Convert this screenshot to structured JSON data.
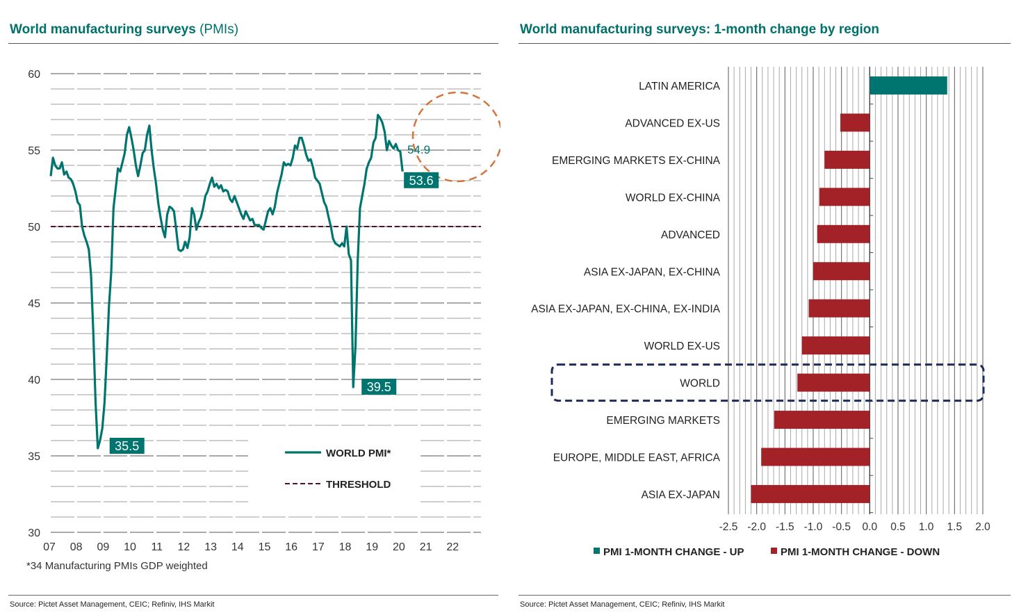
{
  "left_panel": {
    "title": "World manufacturing surveys",
    "title_suffix": "(PMIs)",
    "footnote": "*34 Manufacturing PMIs GDP weighted",
    "source": "Source: Pictet Asset Management, CEIC; Refiniv, IHS Markit"
  },
  "right_panel": {
    "title": "World manufacturing surveys: 1-month change by region",
    "source": "Source: Pictet Asset Management, CEIC; Refiniv, IHS Markit"
  },
  "colors": {
    "teal": "#00746e",
    "red": "#a32227",
    "threshold": "#5a1020",
    "annotation_circle": "#d4733a",
    "highlight_box": "#1a2b5c",
    "title": "#00706b"
  },
  "chart_data": [
    {
      "type": "line",
      "title": "World manufacturing surveys (PMIs)",
      "xlabel": "",
      "ylabel": "",
      "x_ticks": [
        "07",
        "08",
        "09",
        "10",
        "11",
        "12",
        "13",
        "14",
        "15",
        "16",
        "17",
        "18",
        "19",
        "20",
        "21",
        "22"
      ],
      "xlim": [
        "2007-01",
        "2023-01"
      ],
      "ylim": [
        30,
        60
      ],
      "y_ticks": [
        30,
        35,
        40,
        45,
        50,
        55,
        60
      ],
      "grid": true,
      "legend_placement": "bottom-right",
      "series": [
        {
          "name": "WORLD PMI*",
          "style": "solid",
          "points": [
            [
              "2007-01",
              53.3
            ],
            [
              "2007-02",
              54.5
            ],
            [
              "2007-03",
              54.0
            ],
            [
              "2007-04",
              53.8
            ],
            [
              "2007-05",
              53.8
            ],
            [
              "2007-06",
              54.2
            ],
            [
              "2007-07",
              53.4
            ],
            [
              "2007-08",
              53.6
            ],
            [
              "2007-09",
              53.2
            ],
            [
              "2007-10",
              53.1
            ],
            [
              "2007-11",
              52.8
            ],
            [
              "2007-12",
              52.3
            ],
            [
              "2008-01",
              51.6
            ],
            [
              "2008-02",
              51.4
            ],
            [
              "2008-03",
              50.0
            ],
            [
              "2008-04",
              49.4
            ],
            [
              "2008-05",
              49.0
            ],
            [
              "2008-06",
              48.5
            ],
            [
              "2008-07",
              46.8
            ],
            [
              "2008-08",
              43.0
            ],
            [
              "2008-09",
              38.5
            ],
            [
              "2008-10",
              35.5
            ],
            [
              "2008-11",
              36.0
            ],
            [
              "2008-12",
              36.8
            ],
            [
              "2009-01",
              38.5
            ],
            [
              "2009-02",
              41.5
            ],
            [
              "2009-03",
              44.8
            ],
            [
              "2009-04",
              47.0
            ],
            [
              "2009-05",
              51.2
            ],
            [
              "2009-06",
              52.5
            ],
            [
              "2009-07",
              53.8
            ],
            [
              "2009-08",
              53.6
            ],
            [
              "2009-09",
              54.2
            ],
            [
              "2009-10",
              54.8
            ],
            [
              "2009-11",
              56.0
            ],
            [
              "2009-12",
              56.5
            ],
            [
              "2010-01",
              55.8
            ],
            [
              "2010-02",
              55.0
            ],
            [
              "2010-03",
              54.0
            ],
            [
              "2010-04",
              53.3
            ],
            [
              "2010-05",
              54.0
            ],
            [
              "2010-06",
              54.8
            ],
            [
              "2010-07",
              55.0
            ],
            [
              "2010-08",
              56.0
            ],
            [
              "2010-09",
              56.6
            ],
            [
              "2010-10",
              55.0
            ],
            [
              "2010-11",
              53.8
            ],
            [
              "2010-12",
              52.8
            ],
            [
              "2011-01",
              51.5
            ],
            [
              "2011-02",
              50.6
            ],
            [
              "2011-03",
              49.8
            ],
            [
              "2011-04",
              49.3
            ],
            [
              "2011-05",
              50.8
            ],
            [
              "2011-06",
              51.3
            ],
            [
              "2011-07",
              51.2
            ],
            [
              "2011-08",
              51.0
            ],
            [
              "2011-09",
              49.8
            ],
            [
              "2011-10",
              48.5
            ],
            [
              "2011-11",
              48.4
            ],
            [
              "2011-12",
              48.5
            ],
            [
              "2012-01",
              49.0
            ],
            [
              "2012-02",
              48.6
            ],
            [
              "2012-03",
              49.3
            ],
            [
              "2012-04",
              51.2
            ],
            [
              "2012-05",
              50.8
            ],
            [
              "2012-06",
              49.8
            ],
            [
              "2012-07",
              50.3
            ],
            [
              "2012-08",
              50.6
            ],
            [
              "2012-09",
              51.2
            ],
            [
              "2012-10",
              52.0
            ],
            [
              "2012-11",
              52.3
            ],
            [
              "2012-12",
              52.8
            ],
            [
              "2013-01",
              53.2
            ],
            [
              "2013-02",
              52.6
            ],
            [
              "2013-03",
              52.8
            ],
            [
              "2013-04",
              52.5
            ],
            [
              "2013-05",
              52.7
            ],
            [
              "2013-06",
              52.3
            ],
            [
              "2013-07",
              52.4
            ],
            [
              "2013-08",
              52.3
            ],
            [
              "2013-09",
              51.8
            ],
            [
              "2013-10",
              51.6
            ],
            [
              "2013-11",
              52.0
            ],
            [
              "2013-12",
              51.6
            ],
            [
              "2014-01",
              51.2
            ],
            [
              "2014-02",
              50.8
            ],
            [
              "2014-03",
              50.5
            ],
            [
              "2014-04",
              51.0
            ],
            [
              "2014-05",
              50.7
            ],
            [
              "2014-06",
              50.4
            ],
            [
              "2014-07",
              50.5
            ],
            [
              "2014-08",
              50.1
            ],
            [
              "2014-09",
              50.1
            ],
            [
              "2014-10",
              50.1
            ],
            [
              "2014-11",
              49.9
            ],
            [
              "2014-12",
              49.8
            ],
            [
              "2015-01",
              50.4
            ],
            [
              "2015-02",
              51.0
            ],
            [
              "2015-03",
              51.2
            ],
            [
              "2015-04",
              50.8
            ],
            [
              "2015-05",
              51.3
            ],
            [
              "2015-06",
              52.2
            ],
            [
              "2015-07",
              52.8
            ],
            [
              "2015-08",
              53.4
            ],
            [
              "2015-09",
              54.2
            ],
            [
              "2015-10",
              54.0
            ],
            [
              "2015-11",
              54.1
            ],
            [
              "2015-12",
              54.0
            ],
            [
              "2016-01",
              54.5
            ],
            [
              "2016-02",
              55.3
            ],
            [
              "2016-03",
              55.1
            ],
            [
              "2016-04",
              55.8
            ],
            [
              "2016-05",
              55.8
            ],
            [
              "2016-06",
              55.3
            ],
            [
              "2016-07",
              54.7
            ],
            [
              "2016-08",
              54.3
            ],
            [
              "2016-09",
              54.4
            ],
            [
              "2016-10",
              53.9
            ],
            [
              "2016-11",
              53.2
            ],
            [
              "2016-12",
              53.0
            ],
            [
              "2017-01",
              52.8
            ],
            [
              "2017-02",
              52.2
            ],
            [
              "2017-03",
              51.6
            ],
            [
              "2017-04",
              51.3
            ],
            [
              "2017-05",
              50.6
            ],
            [
              "2017-06",
              50.0
            ],
            [
              "2017-07",
              49.2
            ],
            [
              "2017-08",
              48.9
            ],
            [
              "2017-09",
              48.8
            ],
            [
              "2017-10",
              48.7
            ],
            [
              "2017-11",
              48.9
            ],
            [
              "2017-12",
              48.7
            ],
            [
              "2018-01",
              50.0
            ],
            [
              "2018-02",
              48.2
            ],
            [
              "2018-03",
              47.8
            ],
            [
              "2018-04",
              39.5
            ],
            [
              "2018-05",
              42.2
            ],
            [
              "2018-06",
              47.8
            ],
            [
              "2018-07",
              51.2
            ],
            [
              "2018-08",
              52.0
            ],
            [
              "2018-09",
              52.8
            ],
            [
              "2018-10",
              53.8
            ],
            [
              "2018-11",
              54.2
            ],
            [
              "2018-12",
              54.5
            ],
            [
              "2019-01",
              55.5
            ],
            [
              "2019-02",
              55.8
            ],
            [
              "2019-03",
              57.3
            ],
            [
              "2019-04",
              57.1
            ],
            [
              "2019-05",
              56.8
            ],
            [
              "2019-06",
              56.2
            ],
            [
              "2019-07",
              55.0
            ],
            [
              "2019-08",
              55.6
            ],
            [
              "2019-09",
              55.3
            ],
            [
              "2019-10",
              55.1
            ],
            [
              "2019-11",
              55.4
            ],
            [
              "2019-12",
              55.0
            ],
            [
              "2020-01",
              54.9
            ],
            [
              "2020-02",
              53.6
            ]
          ],
          "value_labels": [
            {
              "date": "2008-10",
              "label": "35.5"
            },
            {
              "date": "2018-04",
              "label": "39.5"
            },
            {
              "date": "2020-01",
              "label": "54.9"
            },
            {
              "date": "2020-02",
              "label": "53.6"
            }
          ]
        },
        {
          "name": "THRESHOLD",
          "style": "dashed",
          "value": 50
        }
      ]
    },
    {
      "type": "bar",
      "orientation": "horizontal",
      "title": "World manufacturing surveys: 1-month change by region",
      "xlabel": "",
      "ylabel": "",
      "xlim": [
        -2.5,
        2.0
      ],
      "x_ticks": [
        "-2.5",
        "-2.0",
        "-1.5",
        "-1.0",
        "-0.5",
        "0.0",
        "0.5",
        "1.0",
        "1.5",
        "2.0"
      ],
      "grid": true,
      "legend_placement": "bottom",
      "legend": [
        "PMI 1-MONTH CHANGE - UP",
        "PMI 1-MONTH CHANGE - DOWN"
      ],
      "categories": [
        "LATIN AMERICA",
        "ADVANCED EX-US",
        "EMERGING MARKETS EX-CHINA",
        "WORLD EX-CHINA",
        "ADVANCED",
        "ASIA EX-JAPAN, EX-CHINA",
        "ASIA EX-JAPAN, EX-CHINA, EX-INDIA",
        "WORLD EX-US",
        "WORLD",
        "EMERGING MARKETS",
        "EUROPE, MIDDLE EAST, AFRICA",
        "ASIA EX-JAPAN"
      ],
      "values": [
        1.37,
        -0.52,
        -0.8,
        -0.89,
        -0.93,
        -1.0,
        -1.08,
        -1.2,
        -1.28,
        -1.69,
        -1.92,
        -2.1
      ],
      "highlighted_category": "WORLD"
    }
  ]
}
